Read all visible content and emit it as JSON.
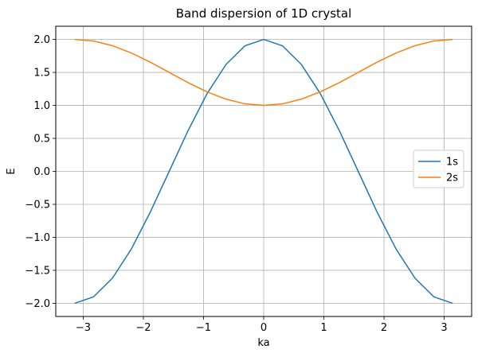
{
  "chart_data": {
    "type": "line",
    "title": "Band dispersion of 1D crystal",
    "xlabel": "ka",
    "ylabel": "E",
    "xlim": [
      -3.4558,
      3.4558
    ],
    "ylim": [
      -2.2,
      2.2
    ],
    "x_ticks": [
      -3,
      -2,
      -1,
      0,
      1,
      2,
      3
    ],
    "x_tick_labels": [
      "−3",
      "−2",
      "−1",
      "0",
      "1",
      "2",
      "3"
    ],
    "y_ticks": [
      -2.0,
      -1.5,
      -1.0,
      -0.5,
      0.0,
      0.5,
      1.0,
      1.5,
      2.0
    ],
    "y_tick_labels": [
      "−2.0",
      "−1.5",
      "−1.0",
      "−0.5",
      "0.0",
      "0.5",
      "1.0",
      "1.5",
      "2.0"
    ],
    "grid": true,
    "legend_position": "center-right",
    "x": [
      -3.1416,
      -2.8274,
      -2.5133,
      -2.1991,
      -1.885,
      -1.5708,
      -1.2566,
      -0.9425,
      -0.6283,
      -0.3142,
      0.0,
      0.3142,
      0.6283,
      0.9425,
      1.2566,
      1.5708,
      1.885,
      2.1991,
      2.5133,
      2.8274,
      3.1416
    ],
    "series": [
      {
        "name": "1s",
        "color": "#1f77b4",
        "values": [
          -2.0,
          -1.902,
          -1.618,
          -1.176,
          -0.618,
          0.0,
          0.618,
          1.176,
          1.618,
          1.902,
          2.0,
          1.902,
          1.618,
          1.176,
          0.618,
          0.0,
          -0.618,
          -1.176,
          -1.618,
          -1.902,
          -2.0
        ]
      },
      {
        "name": "2s",
        "color": "#ff7f0e",
        "values": [
          2.0,
          1.976,
          1.905,
          1.794,
          1.655,
          1.5,
          1.345,
          1.206,
          1.095,
          1.024,
          1.0,
          1.024,
          1.095,
          1.206,
          1.345,
          1.5,
          1.655,
          1.794,
          1.905,
          1.976,
          2.0
        ]
      }
    ]
  }
}
